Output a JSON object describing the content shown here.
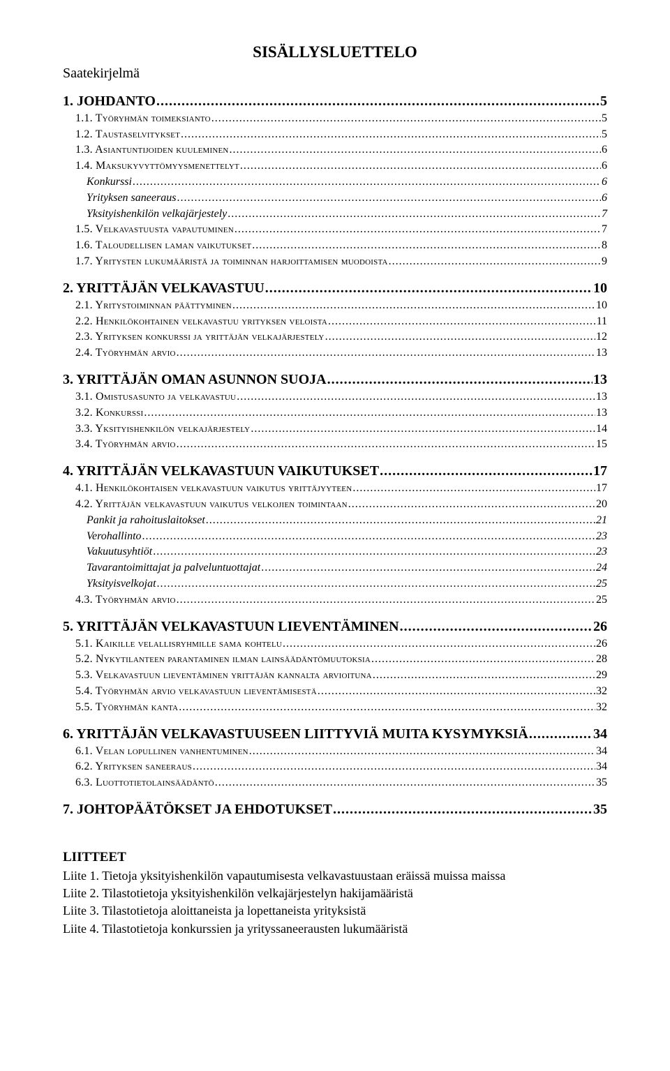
{
  "title": "SISÄLLYSLUETTELO",
  "saate": "Saatekirjelmä",
  "entries": [
    {
      "level": 1,
      "label": "1. JOHDANTO",
      "page": "5"
    },
    {
      "level": 2,
      "label": "1.1. Työryhmän toimeksianto",
      "page": "5"
    },
    {
      "level": 2,
      "label": "1.2. Taustaselvitykset",
      "page": "5"
    },
    {
      "level": 2,
      "label": "1.3. Asiantuntijoiden kuuleminen",
      "page": "6"
    },
    {
      "level": 2,
      "label": "1.4. Maksukyvyttömyysmenettelyt",
      "page": "6"
    },
    {
      "level": 3,
      "label": "Konkurssi",
      "page": "6"
    },
    {
      "level": 3,
      "label": "Yrityksen saneeraus",
      "page": "6"
    },
    {
      "level": 3,
      "label": "Yksityishenkilön velkajärjestely",
      "page": "7"
    },
    {
      "level": 2,
      "label": "1.5. Velkavastuusta vapautuminen",
      "page": "7"
    },
    {
      "level": 2,
      "label": "1.6. Taloudellisen laman vaikutukset",
      "page": "8"
    },
    {
      "level": 2,
      "label": "1.7. Yritysten lukumääristä ja toiminnan harjoittamisen muodoista",
      "page": "9"
    },
    {
      "level": 1,
      "label": "2. YRITTÄJÄN VELKAVASTUU",
      "page": "10"
    },
    {
      "level": 2,
      "label": "2.1. Yritystoiminnan päättyminen",
      "page": "10"
    },
    {
      "level": 2,
      "label": "2.2. Henkilökohtainen velkavastuu yrityksen veloista",
      "page": "11"
    },
    {
      "level": 2,
      "label": "2.3. Yrityksen konkurssi ja yrittäjän velkajärjestely",
      "page": "12"
    },
    {
      "level": 2,
      "label": "2.4. Työryhmän arvio",
      "page": "13"
    },
    {
      "level": 1,
      "label": "3. YRITTÄJÄN OMAN ASUNNON SUOJA",
      "page": "13"
    },
    {
      "level": 2,
      "label": "3.1. Omistusasunto ja velkavastuu",
      "page": "13"
    },
    {
      "level": 2,
      "label": "3.2. Konkurssi",
      "page": "13"
    },
    {
      "level": 2,
      "label": "3.3. Yksityishenkilön velkajärjestely",
      "page": "14"
    },
    {
      "level": 2,
      "label": "3.4. Työryhmän arvio",
      "page": "15"
    },
    {
      "level": 1,
      "label": "4. YRITTÄJÄN VELKAVASTUUN VAIKUTUKSET",
      "page": "17"
    },
    {
      "level": 2,
      "label": "4.1. Henkilökohtaisen velkavastuun vaikutus yrittäjyyteen",
      "page": "17"
    },
    {
      "level": 2,
      "label": "4.2. Yrittäjän velkavastuun vaikutus velkojien toimintaan",
      "page": "20"
    },
    {
      "level": 3,
      "label": "Pankit ja rahoituslaitokset",
      "page": "21"
    },
    {
      "level": 3,
      "label": "Verohallinto",
      "page": "23"
    },
    {
      "level": 3,
      "label": "Vakuutusyhtiöt",
      "page": "23"
    },
    {
      "level": 3,
      "label": "Tavarantoimittajat ja palveluntuottajat",
      "page": "24"
    },
    {
      "level": 3,
      "label": "Yksityisvelkojat",
      "page": "25"
    },
    {
      "level": 2,
      "label": "4.3. Työryhmän arvio",
      "page": "25"
    },
    {
      "level": 1,
      "label": "5. YRITTÄJÄN VELKAVASTUUN LIEVENTÄMINEN",
      "page": "26"
    },
    {
      "level": 2,
      "label": "5.1. Kaikille velallisryhmille sama kohtelu",
      "page": "26"
    },
    {
      "level": 2,
      "label": "5.2. Nykytilanteen parantaminen ilman lainsäädäntömuutoksia",
      "page": "28"
    },
    {
      "level": 2,
      "label": "5.3. Velkavastuun lieventäminen yrittäjän kannalta arvioituna",
      "page": "29"
    },
    {
      "level": 2,
      "label": "5.4. Työryhmän arvio velkavastuun lieventämisestä",
      "page": "32"
    },
    {
      "level": 2,
      "label": "5.5. Työryhmän kanta",
      "page": "32"
    },
    {
      "level": 1,
      "label": "6. YRITTÄJÄN VELKAVASTUUSEEN LIITTYVIÄ MUITA KYSYMYKSIÄ",
      "page": "34",
      "tight": true
    },
    {
      "level": 2,
      "label": "6.1. Velan lopullinen vanhentuminen",
      "page": "34"
    },
    {
      "level": 2,
      "label": "6.2. Yrityksen saneeraus",
      "page": "34"
    },
    {
      "level": 2,
      "label": "6.3. Luottotietolainsäädäntö",
      "page": "35"
    },
    {
      "level": 1,
      "label": "7. JOHTOPÄÄTÖKSET JA EHDOTUKSET",
      "page": "35"
    }
  ],
  "liitteet": {
    "header": "LIITTEET",
    "items": [
      "Liite 1. Tietoja yksityishenkilön vapautumisesta velkavastuustaan eräissä muissa maissa",
      "Liite 2. Tilastotietoja yksityishenkilön velkajärjestelyn hakijamääristä",
      "Liite 3. Tilastotietoja aloittaneista ja lopettaneista yrityksistä",
      "Liite 4. Tilastotietoja konkurssien ja yrityssaneerausten lukumääristä"
    ]
  }
}
